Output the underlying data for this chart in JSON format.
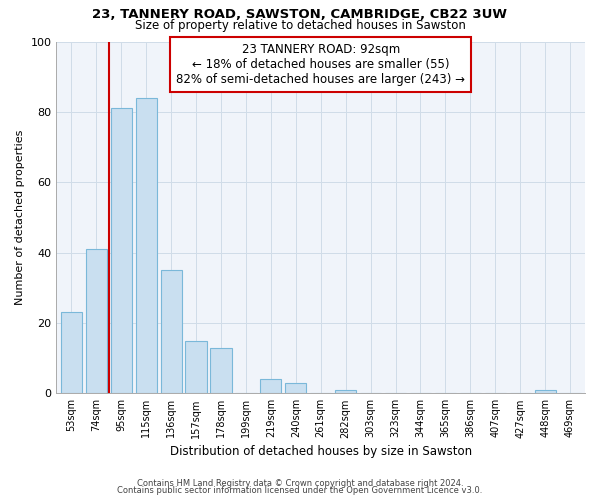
{
  "title": "23, TANNERY ROAD, SAWSTON, CAMBRIDGE, CB22 3UW",
  "subtitle": "Size of property relative to detached houses in Sawston",
  "xlabel": "Distribution of detached houses by size in Sawston",
  "ylabel": "Number of detached properties",
  "bar_labels": [
    "53sqm",
    "74sqm",
    "95sqm",
    "115sqm",
    "136sqm",
    "157sqm",
    "178sqm",
    "199sqm",
    "219sqm",
    "240sqm",
    "261sqm",
    "282sqm",
    "303sqm",
    "323sqm",
    "344sqm",
    "365sqm",
    "386sqm",
    "407sqm",
    "427sqm",
    "448sqm",
    "469sqm"
  ],
  "bar_heights": [
    23,
    41,
    81,
    84,
    35,
    15,
    13,
    0,
    4,
    3,
    0,
    1,
    0,
    0,
    0,
    0,
    0,
    0,
    0,
    1,
    0
  ],
  "bar_color": "#c9dff0",
  "bar_edge_color": "#7ab8d9",
  "annotation_box_edge": "#cc0000",
  "property_line_color": "#cc0000",
  "ann_line1": "23 TANNERY ROAD: 92sqm",
  "ann_line2": "← 18% of detached houses are smaller (55)",
  "ann_line3": "82% of semi-detached houses are larger (243) →",
  "ylim": [
    0,
    100
  ],
  "yticks": [
    0,
    20,
    40,
    60,
    80,
    100
  ],
  "grid_color": "#d0dce8",
  "footnote1": "Contains HM Land Registry data © Crown copyright and database right 2024.",
  "footnote2": "Contains public sector information licensed under the Open Government Licence v3.0.",
  "bg_color": "#f0f4fa"
}
